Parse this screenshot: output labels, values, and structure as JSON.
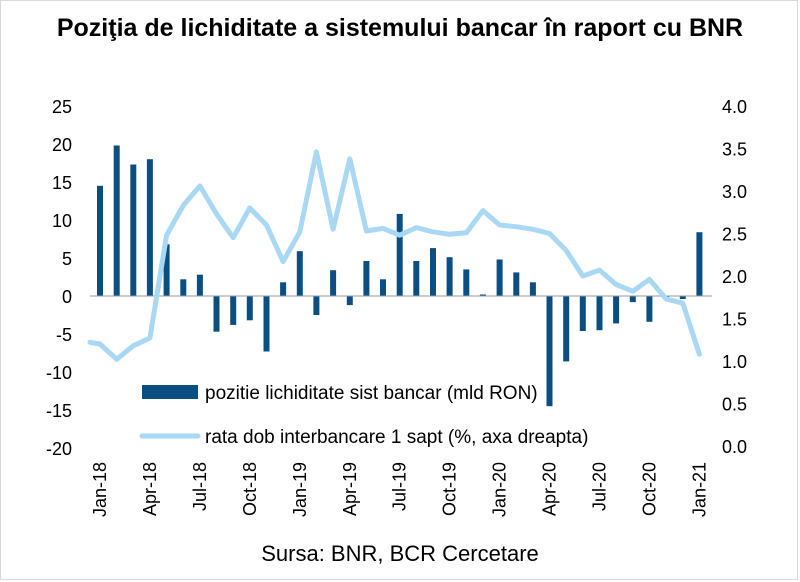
{
  "title": "Poziţia de lichiditate a sistemului bancar în raport cu BNR",
  "source": "Sursa: BNR, BCR Cercetare",
  "colors": {
    "bars": "#0b4f82",
    "line": "#a9d8f5"
  },
  "chart_data": {
    "type": "bar+line",
    "x": [
      "Jan-18",
      "Feb-18",
      "Mar-18",
      "Apr-18",
      "May-18",
      "Jun-18",
      "Jul-18",
      "Aug-18",
      "Sep-18",
      "Oct-18",
      "Nov-18",
      "Dec-18",
      "Jan-19",
      "Feb-19",
      "Mar-19",
      "Apr-19",
      "May-19",
      "Jun-19",
      "Jul-19",
      "Aug-19",
      "Sep-19",
      "Oct-19",
      "Nov-19",
      "Dec-19",
      "Jan-20",
      "Feb-20",
      "Mar-20",
      "Apr-20",
      "May-20",
      "Jun-20",
      "Jul-20",
      "Aug-20",
      "Sep-20",
      "Oct-20",
      "Nov-20",
      "Dec-20",
      "Jan-21"
    ],
    "x_tick_labels": [
      "Jan-18",
      "Apr-18",
      "Jul-18",
      "Oct-18",
      "Jan-19",
      "Apr-19",
      "Jul-19",
      "Oct-19",
      "Jan-20",
      "Apr-20",
      "Jul-20",
      "Oct-20",
      "Jan-21"
    ],
    "series": [
      {
        "name": "pozitie lichiditate sist bancar (mld RON)",
        "type": "bar",
        "axis": "left",
        "values": [
          14.5,
          19.8,
          17.3,
          18.0,
          6.8,
          2.2,
          2.8,
          -4.7,
          -3.8,
          -3.2,
          -7.3,
          1.8,
          5.9,
          -2.5,
          3.4,
          -1.2,
          4.6,
          2.2,
          10.8,
          4.6,
          6.3,
          5.1,
          3.5,
          0.2,
          4.8,
          3.1,
          1.8,
          -14.5,
          -8.6,
          -4.6,
          -4.5,
          -3.6,
          -0.8,
          -3.4,
          -0.2,
          -0.4,
          8.4
        ]
      },
      {
        "name": "rata dob interbancare 1 sapt (%, axa dreapta)",
        "type": "line",
        "axis": "right",
        "values": [
          1.2,
          1.02,
          1.18,
          1.27,
          2.48,
          2.83,
          3.06,
          2.73,
          2.45,
          2.8,
          2.6,
          2.17,
          2.52,
          3.46,
          2.55,
          3.38,
          2.53,
          2.56,
          2.48,
          2.57,
          2.52,
          2.49,
          2.51,
          2.77,
          2.6,
          2.58,
          2.55,
          2.5,
          2.3,
          2.0,
          2.07,
          1.9,
          1.82,
          1.96,
          1.73,
          1.68,
          1.08
        ]
      }
    ],
    "y_left": {
      "ticks": [
        "25",
        "20",
        "15",
        "10",
        "5",
        "0",
        "-5",
        "-10",
        "-15",
        "-20"
      ],
      "range": [
        -20,
        25
      ]
    },
    "y_right": {
      "ticks": [
        "4.0",
        "3.5",
        "3.0",
        "2.5",
        "2.0",
        "1.5",
        "1.0",
        "0.5",
        "0.0"
      ],
      "range": [
        0,
        4
      ]
    },
    "legend": [
      {
        "label": "pozitie lichiditate sist bancar (mld RON)"
      },
      {
        "label": "rata dob interbancare 1 sapt (%, axa dreapta)"
      }
    ],
    "legend_position": "bottom-center inside plot",
    "grid": false
  }
}
